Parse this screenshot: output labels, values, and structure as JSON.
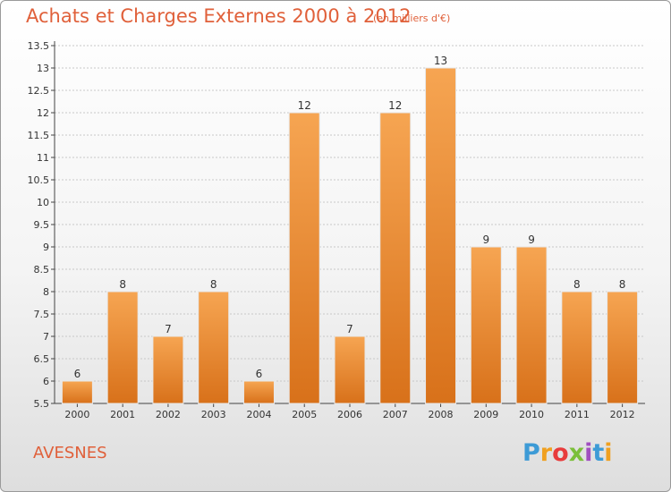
{
  "header": {
    "title": "Achats et Charges Externes 2000 à 2012",
    "unit": "(en milliers d'€)"
  },
  "footer": {
    "commune": "AVESNES",
    "logo": "Proxiti"
  },
  "colors": {
    "accent": "#e0603a",
    "bar_top": "#f6a552",
    "bar_bottom": "#d8711a",
    "grid": "#c8c8c8"
  },
  "chart_data": {
    "type": "bar",
    "title": "Achats et Charges Externes 2000 à 2012",
    "subtitle": "(en milliers d'€)",
    "categories": [
      "2000",
      "2001",
      "2002",
      "2003",
      "2004",
      "2005",
      "2006",
      "2007",
      "2008",
      "2009",
      "2010",
      "2011",
      "2012"
    ],
    "values": [
      6,
      8,
      7,
      8,
      6,
      12,
      7,
      12,
      13,
      9,
      9,
      8,
      8
    ],
    "data_labels": [
      "6",
      "8",
      "7",
      "8",
      "6",
      "12",
      "7",
      "12",
      "13",
      "9",
      "9",
      "8",
      "8"
    ],
    "yticks": [
      "5.5",
      "6",
      "6.5",
      "7",
      "7.5",
      "8",
      "8.5",
      "9",
      "9.5",
      "10",
      "10.5",
      "11",
      "11.5",
      "12",
      "12.5",
      "13",
      "13.5"
    ],
    "ylim": [
      5.5,
      13.5
    ],
    "grid": true,
    "legend": "none"
  }
}
